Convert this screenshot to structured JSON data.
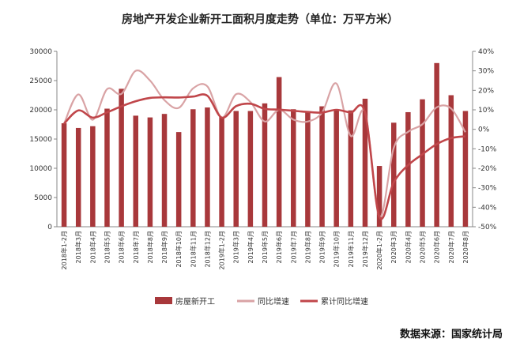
{
  "chart_data": {
    "type": "bar",
    "title": "房地产开发企业新开工面积月度走势（单位：万平方米）",
    "source": "数据来源：国家统计局",
    "categories": [
      "2018年1-2月",
      "2018年3月",
      "2018年4月",
      "2018年5月",
      "2018年6月",
      "2018年7月",
      "2018年8月",
      "2018年9月",
      "2018年10月",
      "2018年11月",
      "2018年12月",
      "2019年1-2月",
      "2019年3月",
      "2019年4月",
      "2019年5月",
      "2019年6月",
      "2019年7月",
      "2019年8月",
      "2019年9月",
      "2019年10月",
      "2019年11月",
      "2019年12月",
      "2020年1-2月",
      "2020年3月",
      "2020年4月",
      "2020年5月",
      "2020年6月",
      "2020年7月",
      "2020年8月"
    ],
    "left_axis": {
      "min": 0,
      "max": 30000,
      "ticks": [
        0,
        5000,
        10000,
        15000,
        20000,
        25000,
        30000
      ]
    },
    "right_axis": {
      "min": -50,
      "max": 40,
      "ticks": [
        "-50%",
        "-40%",
        "-30%",
        "-20%",
        "-10%",
        "0%",
        "10%",
        "20%",
        "30%",
        "40%"
      ]
    },
    "series": [
      {
        "name": "房屋新开工",
        "kind": "bar",
        "axis": "left",
        "color": "#a8383b",
        "values": [
          17700,
          16900,
          17200,
          20200,
          23600,
          19000,
          18700,
          19300,
          16200,
          20100,
          20400,
          18800,
          19800,
          19800,
          21100,
          25600,
          20100,
          19600,
          20600,
          20000,
          19900,
          21900,
          10400,
          17800,
          19600,
          21800,
          28000,
          22500,
          19800
        ]
      },
      {
        "name": "同比增速",
        "kind": "line",
        "axis": "right",
        "color": "#d9a3a5",
        "values": [
          2.9,
          17.9,
          4.9,
          20.6,
          18.2,
          30,
          25,
          15,
          11,
          21,
          22,
          6,
          18,
          14,
          4,
          10,
          5,
          4,
          8.6,
          23.5,
          -3.4,
          8.6,
          -44.9,
          -9.5,
          -1.3,
          2.6,
          11.3,
          10.7,
          -1.5
        ]
      },
      {
        "name": "累计同比增速",
        "kind": "line",
        "axis": "right",
        "color": "#c0464a",
        "values": [
          2.9,
          9.7,
          6,
          8.7,
          11.8,
          14.4,
          16.1,
          16.4,
          16.3,
          16.8,
          17.2,
          6,
          11.9,
          13.1,
          10.5,
          10.1,
          9.5,
          8.9,
          8.6,
          10,
          8.6,
          8.5,
          -44.9,
          -27.2,
          -18.4,
          -12.8,
          -7.6,
          -4.5,
          -3.6
        ]
      }
    ]
  }
}
